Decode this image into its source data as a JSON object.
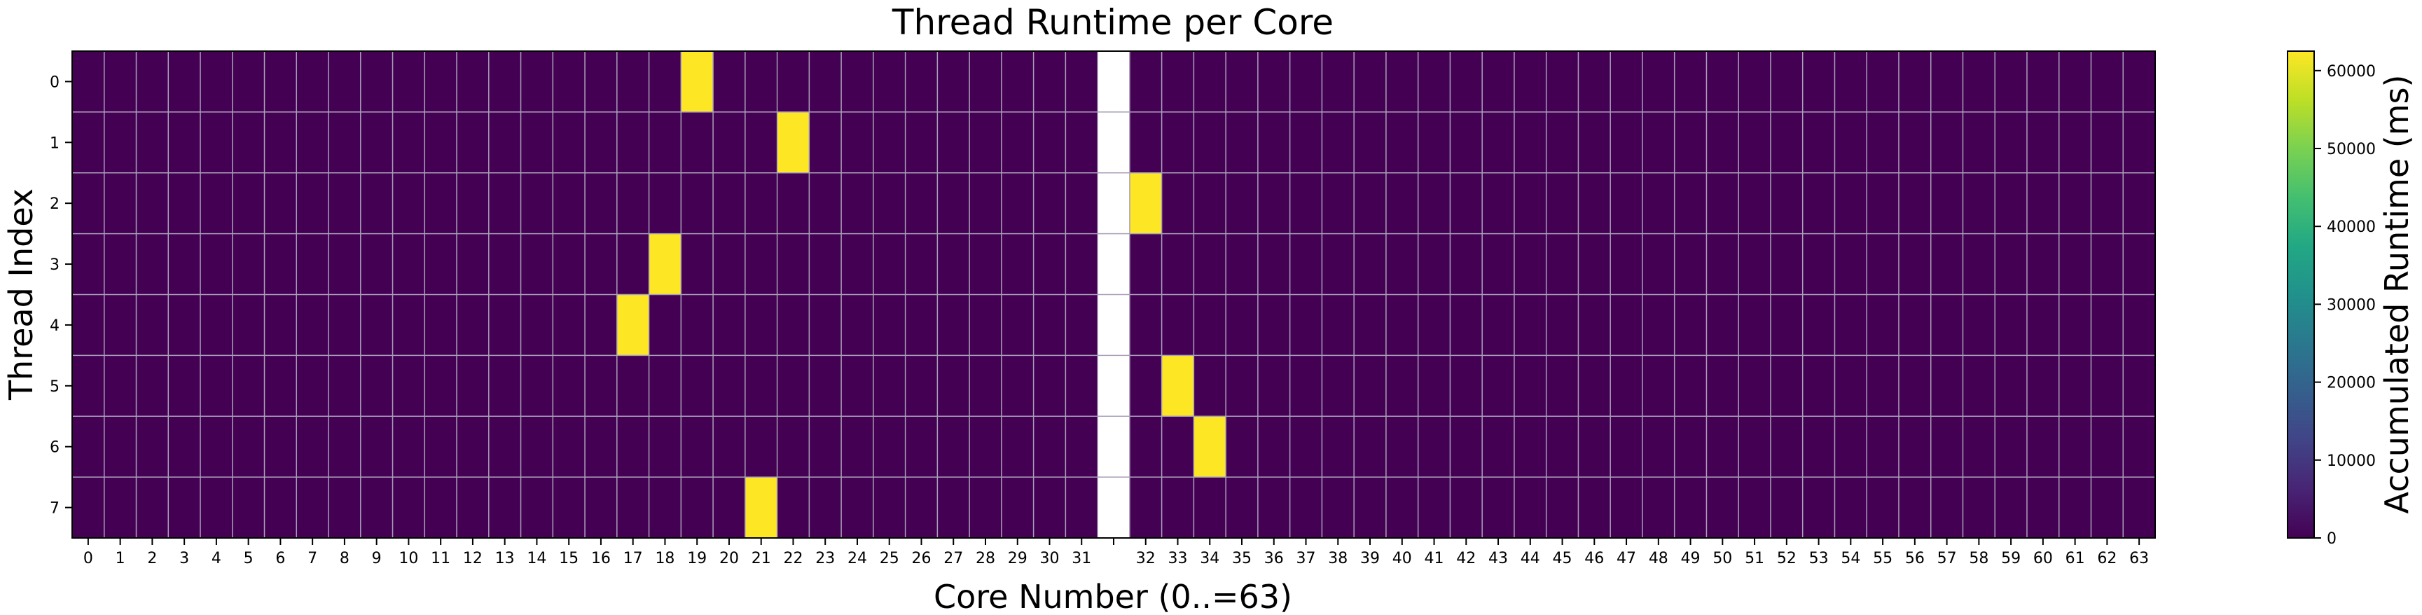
{
  "chart_data": {
    "type": "heatmap",
    "title": "Thread Runtime per Core",
    "xlabel": "Core Number (0..=63)",
    "ylabel": "Thread Index",
    "colorbar_label": "Accumulated Runtime (ms)",
    "x_categories": [
      "0",
      "1",
      "2",
      "3",
      "4",
      "5",
      "6",
      "7",
      "8",
      "9",
      "10",
      "11",
      "12",
      "13",
      "14",
      "15",
      "16",
      "17",
      "18",
      "19",
      "20",
      "21",
      "22",
      "23",
      "24",
      "25",
      "26",
      "27",
      "28",
      "29",
      "30",
      "31",
      "32",
      "33",
      "34",
      "35",
      "36",
      "37",
      "38",
      "39",
      "40",
      "41",
      "42",
      "43",
      "44",
      "45",
      "46",
      "47",
      "48",
      "49",
      "50",
      "51",
      "52",
      "53",
      "54",
      "55",
      "56",
      "57",
      "58",
      "59",
      "60",
      "61",
      "62",
      "63"
    ],
    "y_categories": [
      "0",
      "1",
      "2",
      "3",
      "4",
      "5",
      "6",
      "7"
    ],
    "x_ticks_shown": [
      "0",
      "1",
      "2",
      "3",
      "4",
      "5",
      "6",
      "7",
      "8",
      "9",
      "10",
      "11",
      "12",
      "13",
      "14",
      "15",
      "16",
      "17",
      "18",
      "19",
      "20",
      "21",
      "22",
      "23",
      "24",
      "25",
      "26",
      "27",
      "28",
      "29",
      "30",
      "31",
      "",
      "32",
      "33",
      "34",
      "35",
      "36",
      "37",
      "38",
      "39",
      "40",
      "41",
      "42",
      "43",
      "44",
      "45",
      "46",
      "47",
      "48",
      "49",
      "50",
      "51",
      "52",
      "53",
      "54",
      "55",
      "56",
      "57",
      "58",
      "59",
      "60",
      "61",
      "62",
      "63"
    ],
    "missing_column_index": 32,
    "colorbar_ticks": [
      "0",
      "10000",
      "20000",
      "30000",
      "40000",
      "50000",
      "60000"
    ],
    "color_range": [
      0,
      62500
    ],
    "colormap": "viridis",
    "background_value": 0,
    "hot_cells": [
      {
        "thread": 0,
        "core": 19,
        "value": 62000
      },
      {
        "thread": 1,
        "core": 22,
        "value": 62000
      },
      {
        "thread": 2,
        "core": 32,
        "value": 62000
      },
      {
        "thread": 3,
        "core": 18,
        "value": 62000
      },
      {
        "thread": 4,
        "core": 17,
        "value": 62000
      },
      {
        "thread": 5,
        "core": 33,
        "value": 62000
      },
      {
        "thread": 6,
        "core": 34,
        "value": 62000
      },
      {
        "thread": 7,
        "core": 21,
        "value": 62000
      }
    ],
    "grid": true
  }
}
